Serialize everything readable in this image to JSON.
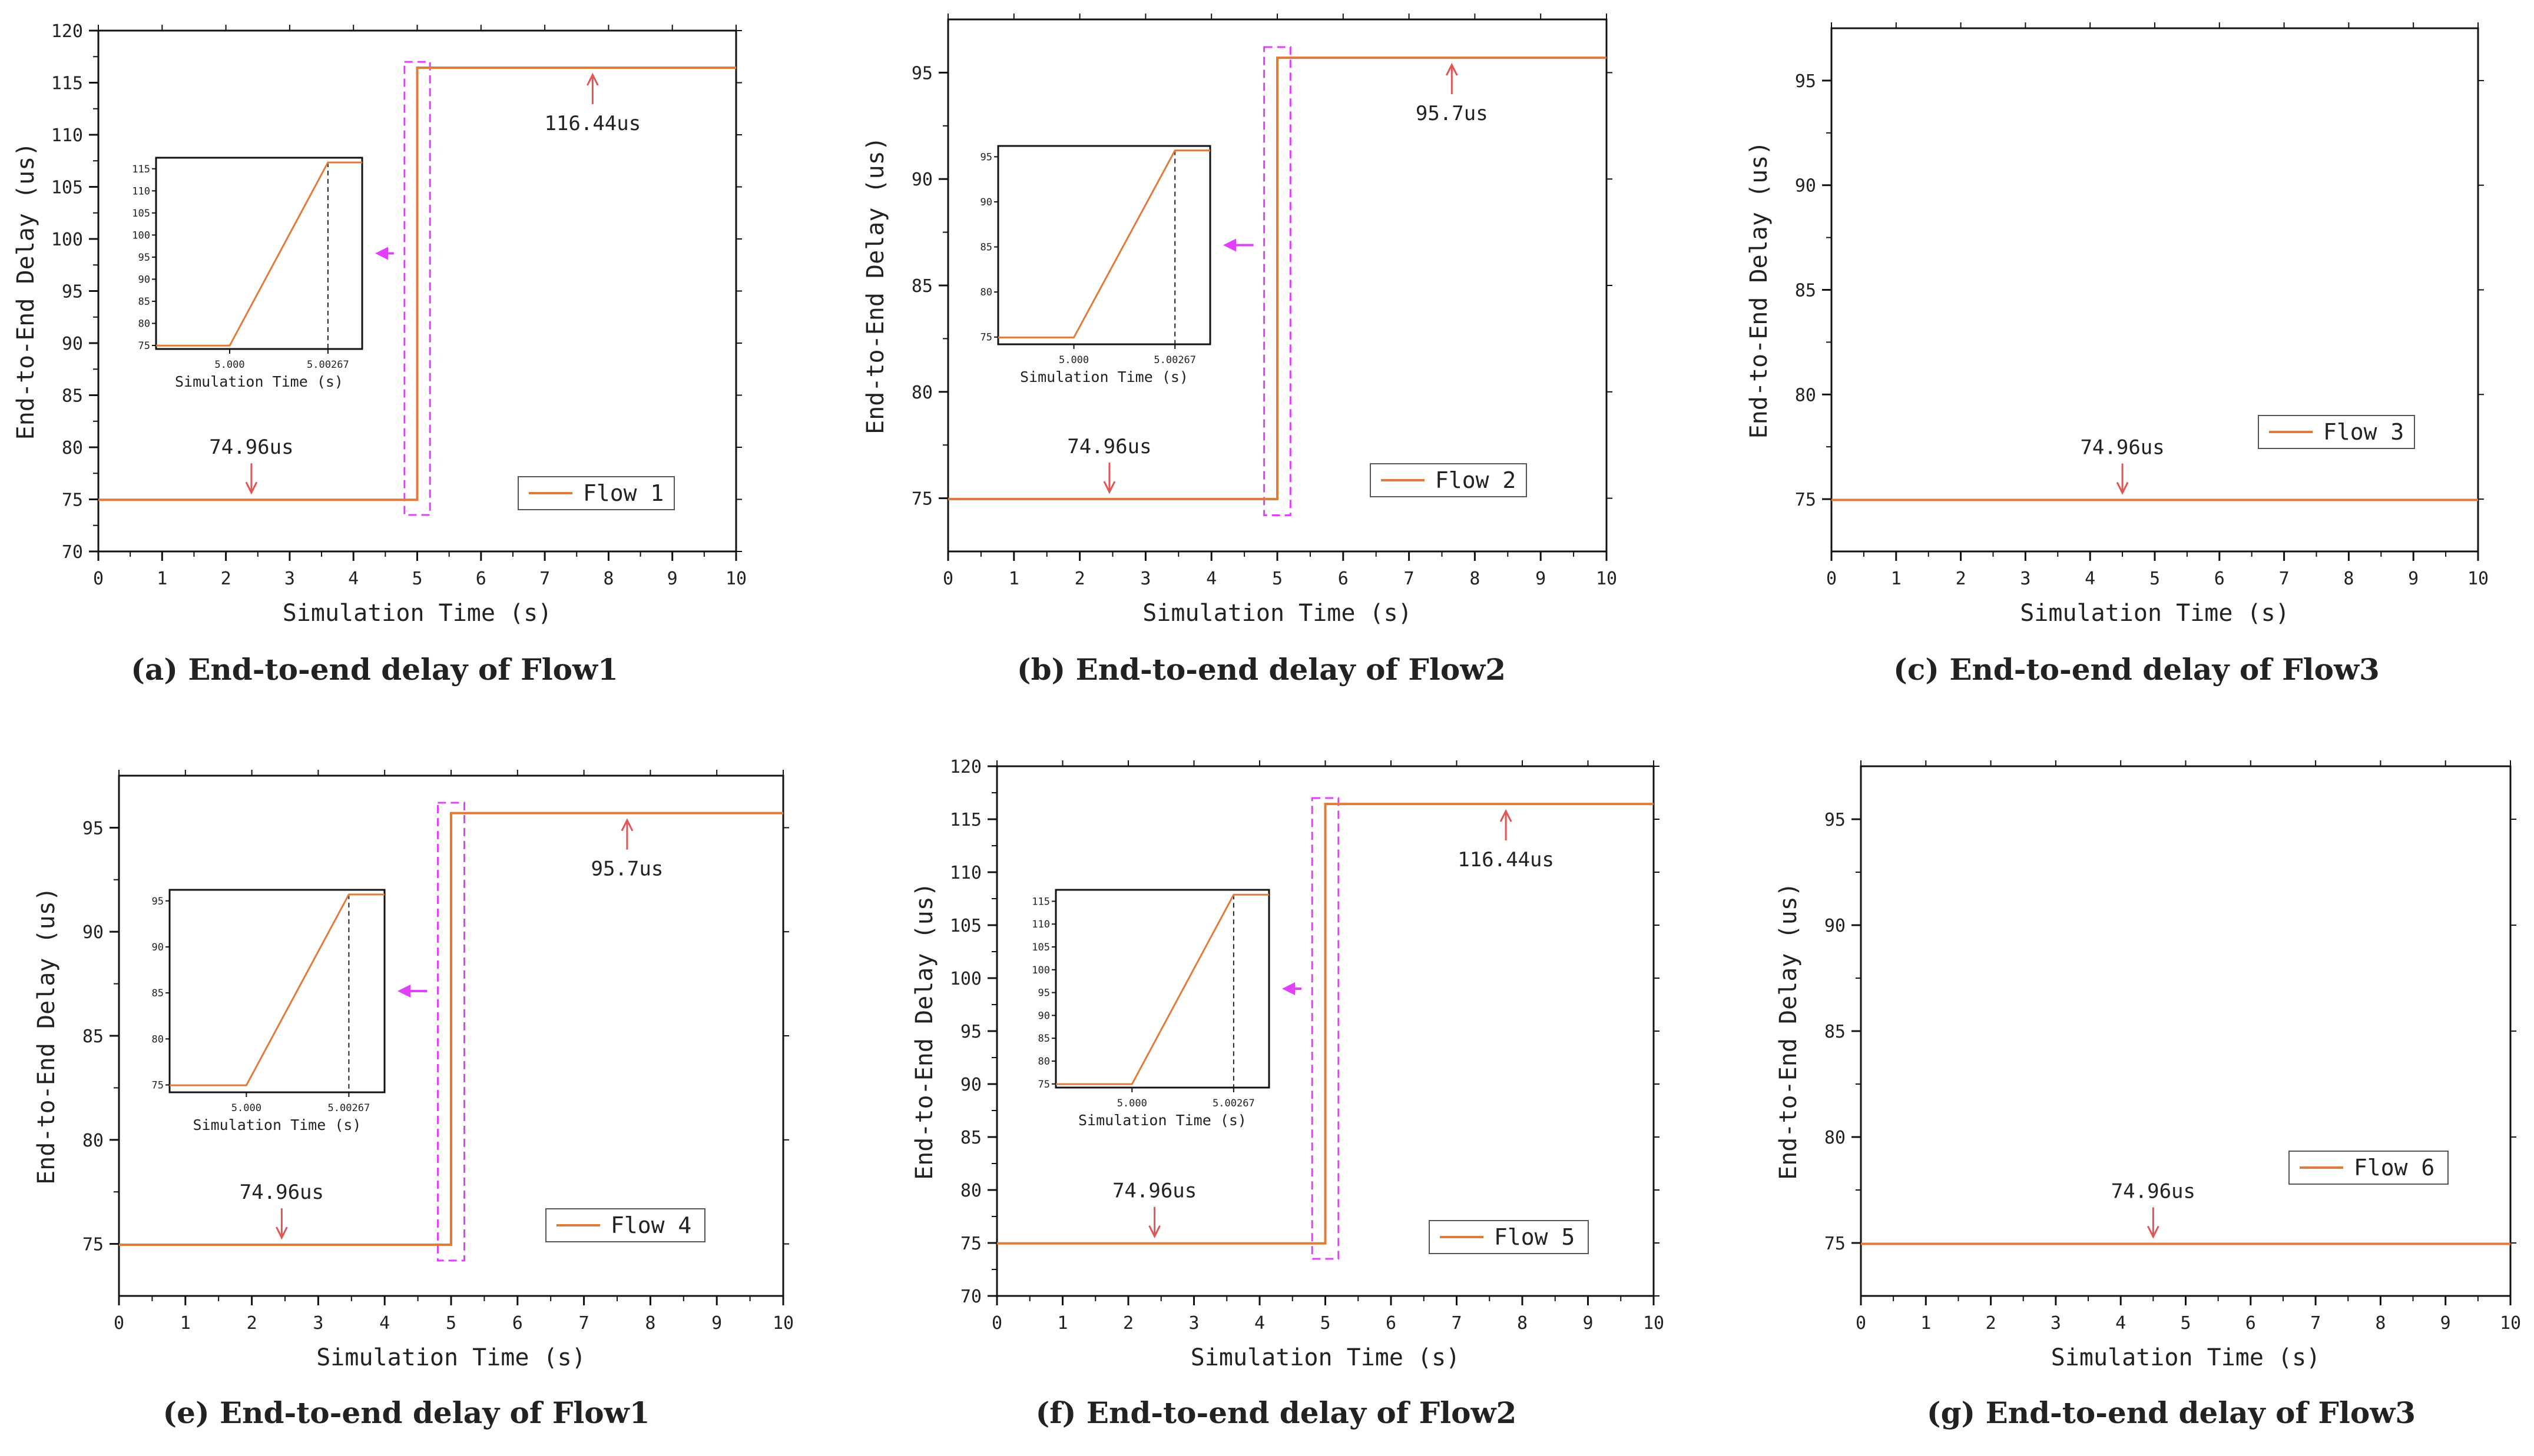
{
  "colors": {
    "series": "#e07b39",
    "annotation_arrow": "#e05555",
    "zoom_box": "#e040fb",
    "axis": "#111111",
    "inset_marker": "#222222"
  },
  "chart_data": [
    {
      "type": "line",
      "panel": "a",
      "caption": "(a) End-to-end delay of Flow1",
      "xlabel": "Simulation Time (s)",
      "ylabel": "End-to-End Delay (us)",
      "xlim": [
        0,
        10
      ],
      "ylim": [
        70,
        120
      ],
      "xticks": [
        0,
        1,
        2,
        3,
        4,
        5,
        6,
        7,
        8,
        9,
        10
      ],
      "yticks": [
        70,
        75,
        80,
        85,
        90,
        95,
        100,
        105,
        110,
        115,
        120
      ],
      "series": [
        {
          "name": "Flow 1",
          "x": [
            0,
            5,
            5,
            10
          ],
          "y": [
            74.96,
            74.96,
            116.44,
            116.44
          ]
        }
      ],
      "legend": {
        "label": "Flow 1",
        "position": "lower-right"
      },
      "annotations": [
        {
          "text": "74.96us",
          "x": 2.4,
          "y": 74.96
        },
        {
          "text": "116.44us",
          "x": 7.75,
          "y": 116.44
        }
      ],
      "zoom_box": {
        "x": [
          4.8,
          5.2
        ],
        "y": [
          73.5,
          117
        ]
      },
      "inset": {
        "xlabel": "Simulation Time (s)",
        "xlim": [
          4.998,
          5.0036
        ],
        "ylim": [
          74.2,
          117.5
        ],
        "xticks": [
          {
            "value": 5.0,
            "label": "5.000"
          },
          {
            "value": 5.00267,
            "label": "5.00267"
          }
        ],
        "yticks": [
          75,
          80,
          85,
          90,
          95,
          100,
          105,
          110,
          115
        ],
        "x": [
          4.998,
          5.0,
          5.00267,
          5.0036
        ],
        "y": [
          74.96,
          74.96,
          116.44,
          116.44
        ],
        "marker_x": 5.00267
      }
    },
    {
      "type": "line",
      "panel": "b",
      "caption": "(b) End-to-end delay of Flow2",
      "xlabel": "Simulation Time (s)",
      "ylabel": "End-to-End Delay (us)",
      "xlim": [
        0,
        10
      ],
      "ylim": [
        72.5,
        97.5
      ],
      "xticks": [
        0,
        1,
        2,
        3,
        4,
        5,
        6,
        7,
        8,
        9,
        10
      ],
      "yticks": [
        75,
        80,
        85,
        90,
        95
      ],
      "series": [
        {
          "name": "Flow 2",
          "x": [
            0,
            5,
            5,
            10
          ],
          "y": [
            74.96,
            74.96,
            95.7,
            95.7
          ]
        }
      ],
      "legend": {
        "label": "Flow 2",
        "position": "lower-right"
      },
      "annotations": [
        {
          "text": "74.96us",
          "x": 2.45,
          "y": 74.96
        },
        {
          "text": "95.7us",
          "x": 7.65,
          "y": 95.7
        }
      ],
      "zoom_box": {
        "x": [
          4.8,
          5.2
        ],
        "y": [
          74.2,
          96.2
        ]
      },
      "inset": {
        "xlabel": "Simulation Time (s)",
        "xlim": [
          4.998,
          5.0036
        ],
        "ylim": [
          74.2,
          96.2
        ],
        "xticks": [
          {
            "value": 5.0,
            "label": "5.000"
          },
          {
            "value": 5.00267,
            "label": "5.00267"
          }
        ],
        "yticks": [
          75,
          80,
          85,
          90,
          95
        ],
        "x": [
          4.998,
          5.0,
          5.00267,
          5.0036
        ],
        "y": [
          74.96,
          74.96,
          95.7,
          95.7
        ],
        "marker_x": 5.00267
      }
    },
    {
      "type": "line",
      "panel": "c",
      "caption": "(c) End-to-end delay of Flow3",
      "xlabel": "Simulation Time (s)",
      "ylabel": "End-to-End Delay (us)",
      "xlim": [
        0,
        10
      ],
      "ylim": [
        72.5,
        97.5
      ],
      "xticks": [
        0,
        1,
        2,
        3,
        4,
        5,
        6,
        7,
        8,
        9,
        10
      ],
      "yticks": [
        75,
        80,
        85,
        90,
        95
      ],
      "series": [
        {
          "name": "Flow 3",
          "x": [
            0,
            10
          ],
          "y": [
            74.96,
            74.96
          ]
        }
      ],
      "legend": {
        "label": "Flow 3",
        "position": "upper-right"
      },
      "annotations": [
        {
          "text": "74.96us",
          "x": 4.5,
          "y": 74.96
        }
      ]
    },
    {
      "type": "line",
      "panel": "e",
      "caption": "(e) End-to-end delay of Flow1",
      "xlabel": "Simulation Time (s)",
      "ylabel": "End-to-End Delay (us)",
      "xlim": [
        0,
        10
      ],
      "ylim": [
        72.5,
        97.5
      ],
      "xticks": [
        0,
        1,
        2,
        3,
        4,
        5,
        6,
        7,
        8,
        9,
        10
      ],
      "yticks": [
        75,
        80,
        85,
        90,
        95
      ],
      "series": [
        {
          "name": "Flow 4",
          "x": [
            0,
            5,
            5,
            10
          ],
          "y": [
            74.96,
            74.96,
            95.7,
            95.7
          ]
        }
      ],
      "legend": {
        "label": "Flow 4",
        "position": "lower-right"
      },
      "annotations": [
        {
          "text": "74.96us",
          "x": 2.45,
          "y": 74.96
        },
        {
          "text": "95.7us",
          "x": 7.65,
          "y": 95.7
        }
      ],
      "zoom_box": {
        "x": [
          4.8,
          5.2
        ],
        "y": [
          74.2,
          96.2
        ]
      },
      "inset": {
        "xlabel": "Simulation Time (s)",
        "xlim": [
          4.998,
          5.0036
        ],
        "ylim": [
          74.2,
          96.2
        ],
        "xticks": [
          {
            "value": 5.0,
            "label": "5.000"
          },
          {
            "value": 5.00267,
            "label": "5.00267"
          }
        ],
        "yticks": [
          75,
          80,
          85,
          90,
          95
        ],
        "x": [
          4.998,
          5.0,
          5.00267,
          5.0036
        ],
        "y": [
          74.96,
          74.96,
          95.7,
          95.7
        ],
        "marker_x": 5.00267
      }
    },
    {
      "type": "line",
      "panel": "f",
      "caption": "(f) End-to-end delay of Flow2",
      "xlabel": "Simulation Time (s)",
      "ylabel": "End-to-End Delay (us)",
      "xlim": [
        0,
        10
      ],
      "ylim": [
        70,
        120
      ],
      "xticks": [
        0,
        1,
        2,
        3,
        4,
        5,
        6,
        7,
        8,
        9,
        10
      ],
      "yticks": [
        70,
        75,
        80,
        85,
        90,
        95,
        100,
        105,
        110,
        115,
        120
      ],
      "series": [
        {
          "name": "Flow 5",
          "x": [
            0,
            5,
            5,
            10
          ],
          "y": [
            74.96,
            74.96,
            116.44,
            116.44
          ]
        }
      ],
      "legend": {
        "label": "Flow 5",
        "position": "lower-right"
      },
      "annotations": [
        {
          "text": "74.96us",
          "x": 2.4,
          "y": 74.96
        },
        {
          "text": "116.44us",
          "x": 7.75,
          "y": 116.44
        }
      ],
      "zoom_box": {
        "x": [
          4.8,
          5.2
        ],
        "y": [
          73.5,
          117
        ]
      },
      "inset": {
        "xlabel": "Simulation Time (s)",
        "xlim": [
          4.998,
          5.0036
        ],
        "ylim": [
          74.2,
          117.5
        ],
        "xticks": [
          {
            "value": 5.0,
            "label": "5.000"
          },
          {
            "value": 5.00267,
            "label": "5.00267"
          }
        ],
        "yticks": [
          75,
          80,
          85,
          90,
          95,
          100,
          105,
          110,
          115
        ],
        "x": [
          4.998,
          5.0,
          5.00267,
          5.0036
        ],
        "y": [
          74.96,
          74.96,
          116.44,
          116.44
        ],
        "marker_x": 5.00267
      }
    },
    {
      "type": "line",
      "panel": "g",
      "caption": "(g) End-to-end delay of Flow3",
      "xlabel": "Simulation Time (s)",
      "ylabel": "End-to-End Delay (us)",
      "xlim": [
        0,
        10
      ],
      "ylim": [
        72.5,
        97.5
      ],
      "xticks": [
        0,
        1,
        2,
        3,
        4,
        5,
        6,
        7,
        8,
        9,
        10
      ],
      "yticks": [
        75,
        80,
        85,
        90,
        95
      ],
      "series": [
        {
          "name": "Flow 6",
          "x": [
            0,
            10
          ],
          "y": [
            74.96,
            74.96
          ]
        }
      ],
      "legend": {
        "label": "Flow 6",
        "position": "upper-right"
      },
      "annotations": [
        {
          "text": "74.96us",
          "x": 4.5,
          "y": 74.96
        }
      ]
    }
  ]
}
